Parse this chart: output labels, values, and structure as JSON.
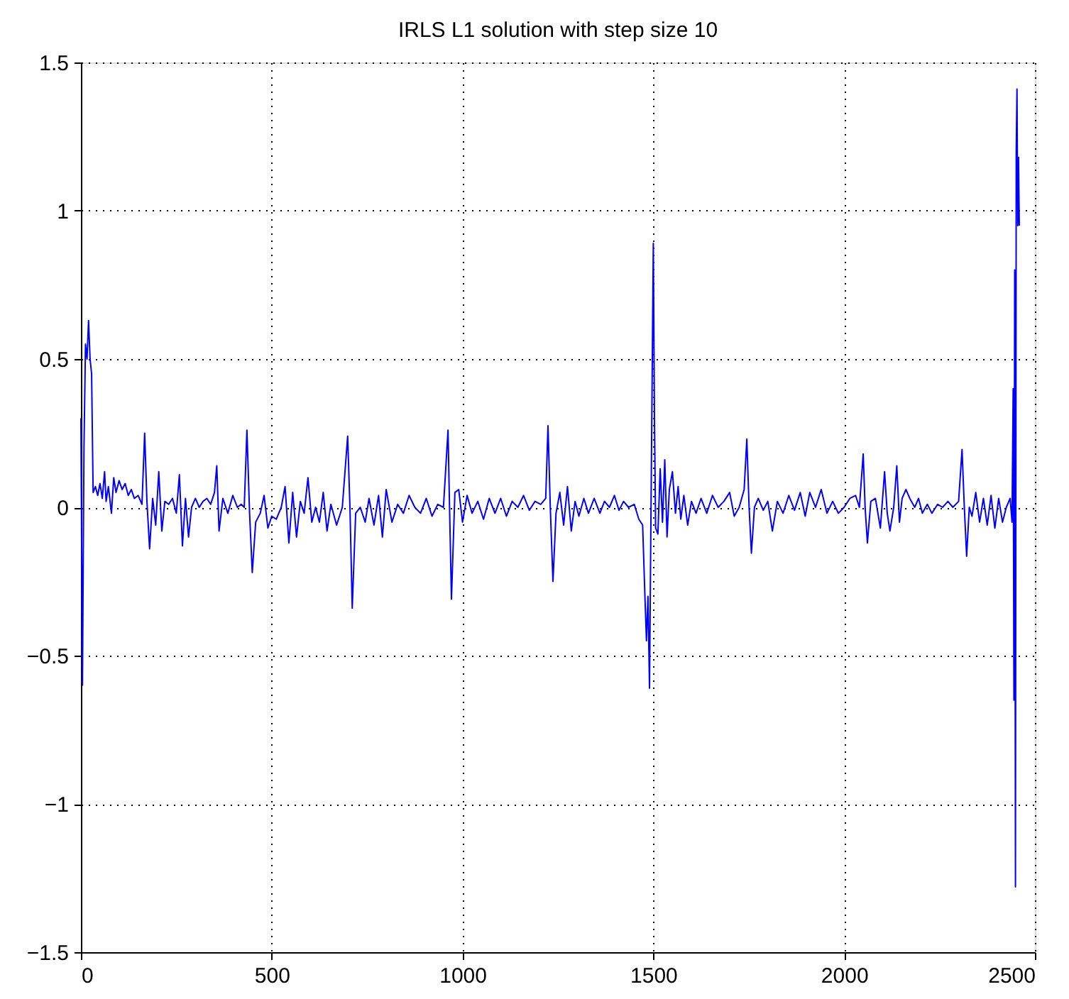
{
  "chart_data": {
    "type": "line",
    "title": "IRLS L1 solution with step size 10",
    "xlim": [
      0,
      2500
    ],
    "xticks": [
      0,
      500,
      1000,
      1500,
      2000,
      2500
    ],
    "ylim": [
      -1.5,
      1.5
    ],
    "yticks": [
      {
        "value": -1.5,
        "label": "−1.5"
      },
      {
        "value": -1,
        "label": "−1"
      },
      {
        "value": -0.5,
        "label": "−0.5"
      },
      0,
      0.5,
      1,
      1.5
    ],
    "grid": true,
    "marker": "none",
    "line_style": "solid",
    "series": [
      {
        "color": "#0000ff",
        "x": [
          0,
          4,
          8,
          12,
          16,
          20,
          24,
          28,
          32,
          38,
          44,
          50,
          56,
          62,
          66,
          72,
          80,
          86,
          92,
          100,
          108,
          116,
          124,
          132,
          140,
          150,
          160,
          167,
          173,
          180,
          188,
          196,
          204,
          212,
          220,
          230,
          240,
          250,
          258,
          266,
          274,
          282,
          290,
          300,
          310,
          320,
          330,
          340,
          350,
          356,
          362,
          372,
          385,
          398,
          410,
          420,
          428,
          435,
          442,
          449,
          458,
          470,
          480,
          490,
          500,
          512,
          525,
          535,
          545,
          555,
          565,
          575,
          585,
          595,
          605,
          615,
          625,
          635,
          645,
          655,
          670,
          685,
          699,
          705,
          711,
          720,
          732,
          745,
          755,
          768,
          780,
          790,
          800,
          815,
          830,
          845,
          860,
          875,
          890,
          905,
          920,
          935,
          950,
          962,
          966,
          971,
          980,
          990,
          1000,
          1012,
          1025,
          1040,
          1055,
          1070,
          1085,
          1100,
          1115,
          1130,
          1145,
          1160,
          1175,
          1190,
          1205,
          1218,
          1224,
          1230,
          1237,
          1245,
          1255,
          1265,
          1275,
          1285,
          1295,
          1305,
          1318,
          1330,
          1345,
          1360,
          1372,
          1385,
          1398,
          1410,
          1422,
          1435,
          1450,
          1462,
          1472,
          1478,
          1482,
          1486,
          1490,
          1494,
          1500,
          1503,
          1506,
          1512,
          1518,
          1524,
          1530,
          1536,
          1542,
          1550,
          1558,
          1565,
          1572,
          1580,
          1590,
          1600,
          1612,
          1625,
          1640,
          1655,
          1670,
          1685,
          1700,
          1712,
          1725,
          1738,
          1745,
          1751,
          1757,
          1765,
          1775,
          1788,
          1800,
          1812,
          1825,
          1840,
          1855,
          1870,
          1885,
          1898,
          1910,
          1925,
          1940,
          1955,
          1970,
          1985,
          2000,
          2015,
          2030,
          2040,
          2050,
          2055,
          2061,
          2070,
          2082,
          2095,
          2106,
          2113,
          2120,
          2130,
          2138,
          2145,
          2152,
          2162,
          2172,
          2185,
          2195,
          2205,
          2218,
          2230,
          2245,
          2258,
          2272,
          2285,
          2300,
          2309,
          2315,
          2321,
          2328,
          2335,
          2345,
          2355,
          2365,
          2375,
          2385,
          2395,
          2405,
          2415,
          2425,
          2435,
          2440,
          2443,
          2445,
          2447,
          2449,
          2451,
          2453,
          2455,
          2457,
          2459
        ],
        "values": [
          0.3,
          -0.6,
          0.2,
          0.55,
          0.5,
          0.63,
          0.5,
          0.45,
          0.05,
          0.07,
          0.04,
          0.08,
          0.03,
          0.12,
          0.02,
          0.07,
          -0.02,
          0.1,
          0.05,
          0.09,
          0.06,
          0.08,
          0.04,
          0.06,
          0.03,
          0.04,
          0.01,
          0.25,
          0.02,
          -0.14,
          0.03,
          -0.06,
          0.12,
          -0.08,
          0.02,
          0.01,
          0.03,
          -0.02,
          0.11,
          -0.13,
          0.03,
          -0.1,
          0.0,
          0.03,
          0.0,
          0.02,
          0.03,
          0.01,
          0.05,
          0.14,
          -0.08,
          0.03,
          -0.02,
          0.04,
          0.0,
          0.01,
          0.0,
          0.26,
          -0.02,
          -0.22,
          -0.05,
          -0.02,
          0.04,
          -0.07,
          -0.03,
          -0.04,
          0.0,
          0.07,
          -0.12,
          0.05,
          -0.1,
          0.02,
          -0.02,
          0.1,
          -0.05,
          0.0,
          -0.05,
          0.05,
          -0.08,
          0.01,
          -0.06,
          0.0,
          0.24,
          0.0,
          -0.34,
          -0.02,
          0.0,
          -0.05,
          0.03,
          -0.06,
          0.04,
          -0.1,
          0.06,
          -0.05,
          0.01,
          -0.02,
          0.04,
          0.0,
          -0.02,
          0.03,
          -0.03,
          0.01,
          0.0,
          0.26,
          0.0,
          -0.31,
          0.05,
          0.06,
          -0.05,
          0.04,
          -0.02,
          0.02,
          -0.04,
          0.03,
          -0.02,
          0.03,
          -0.03,
          0.02,
          0.0,
          0.04,
          -0.01,
          0.02,
          0.01,
          0.03,
          0.275,
          0.0,
          -0.25,
          -0.02,
          0.05,
          -0.06,
          0.07,
          -0.08,
          0.02,
          -0.03,
          0.03,
          -0.02,
          0.03,
          -0.02,
          0.02,
          0.0,
          0.04,
          -0.01,
          0.02,
          0.0,
          0.01,
          -0.04,
          -0.06,
          -0.3,
          -0.45,
          -0.3,
          -0.61,
          0.0,
          0.89,
          0.3,
          -0.07,
          -0.09,
          0.13,
          -0.05,
          0.16,
          -0.1,
          0.06,
          0.12,
          -0.02,
          0.07,
          -0.04,
          0.04,
          -0.06,
          0.02,
          -0.02,
          0.03,
          -0.02,
          0.04,
          0.0,
          0.02,
          0.05,
          -0.03,
          0.0,
          0.06,
          0.23,
          0.0,
          -0.155,
          0.0,
          0.03,
          -0.01,
          0.02,
          -0.08,
          0.02,
          -0.02,
          0.04,
          -0.01,
          0.05,
          -0.03,
          0.05,
          0.0,
          0.06,
          -0.02,
          0.02,
          -0.02,
          0.0,
          0.03,
          0.04,
          0.0,
          0.18,
          0.0,
          -0.12,
          0.02,
          0.03,
          -0.07,
          0.12,
          -0.02,
          -0.08,
          0.0,
          0.14,
          -0.05,
          0.03,
          0.06,
          0.03,
          0.0,
          0.03,
          -0.02,
          0.01,
          -0.02,
          0.01,
          0.0,
          0.02,
          0.0,
          0.02,
          0.195,
          0.0,
          -0.165,
          0.0,
          -0.03,
          0.05,
          -0.05,
          0.03,
          -0.06,
          0.04,
          -0.07,
          0.03,
          -0.05,
          0.0,
          0.03,
          -0.05,
          0.4,
          -0.65,
          0.8,
          -1.28,
          1.2,
          1.41,
          0.95,
          1.18,
          0.95
        ]
      }
    ]
  }
}
